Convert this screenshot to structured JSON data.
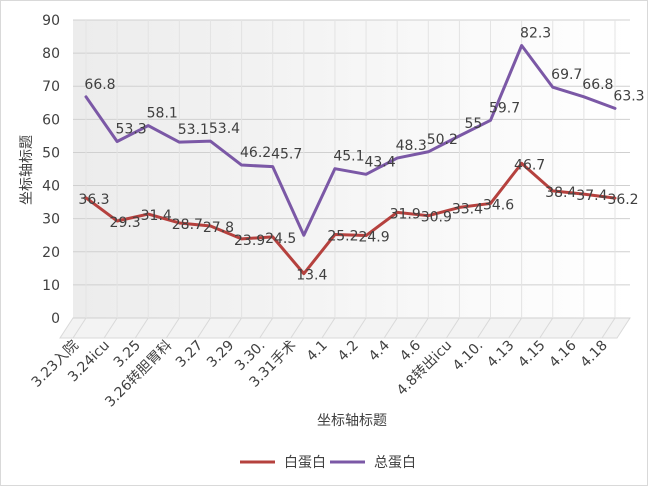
{
  "colors": {
    "series_albumin": "#b5413e",
    "series_total_protein": "#7b58a6",
    "grid": "#d0d0d0",
    "wall_dark": "#ededed",
    "wall_light": "#ffffff",
    "text": "#404040"
  },
  "chart_data": {
    "type": "line",
    "title": "",
    "xlabel": "坐标轴标题",
    "ylabel": "坐标轴标题",
    "ylim": [
      0,
      90
    ],
    "yticks": [
      0,
      10,
      20,
      30,
      40,
      50,
      60,
      70,
      80,
      90
    ],
    "grid": true,
    "legend_position": "bottom",
    "categories": [
      "3.23入院",
      "3.24icu",
      "3.25",
      "3.26转胆胃科",
      "3.27",
      "3.29",
      "3.30.",
      "3.31手术",
      "4.1",
      "4.2",
      "4.4",
      "4.6",
      "4.8转出icu",
      "4.10.",
      "4.13",
      "4.15",
      "4.16",
      "4.18"
    ],
    "series": [
      {
        "name": "白蛋白",
        "values": [
          36.3,
          29.3,
          31.4,
          28.7,
          27.8,
          23.9,
          24.5,
          13.4,
          25.2,
          24.9,
          31.9,
          30.9,
          33.4,
          34.6,
          46.7,
          38.4,
          37.4,
          36.2
        ],
        "labels": [
          "36.3",
          "29.3",
          "31.4",
          "28.7",
          "27.8",
          "23.9",
          "24.5",
          "13.4",
          "25.2",
          "24.9",
          "31.9",
          "30.9",
          "33.4",
          "34.6",
          "46.7",
          "38.4",
          "37.4",
          "36.2"
        ]
      },
      {
        "name": "总蛋白",
        "values": [
          66.8,
          53.3,
          58.1,
          53.1,
          53.4,
          46.2,
          45.7,
          25.0,
          45.1,
          43.4,
          48.3,
          50.2,
          55.0,
          59.7,
          82.3,
          69.7,
          66.8,
          63.3
        ],
        "labels": [
          "66.8",
          "53.3",
          "58.1",
          "53.1",
          "53.4",
          "46.2",
          "45.7",
          "",
          "45.1",
          "43.4",
          "48.3",
          "50.2",
          "55",
          "59.7",
          "82.3",
          "69.7",
          "66.8",
          "63.3"
        ]
      }
    ]
  }
}
